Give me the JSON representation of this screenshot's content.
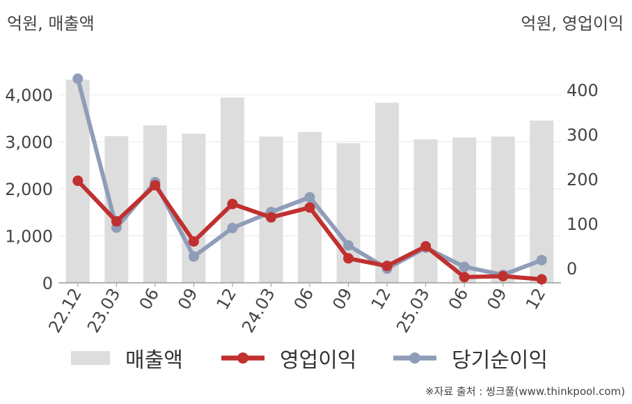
{
  "units": {
    "left": "억원, 매출액",
    "right": "억원, 영업이익"
  },
  "legend": {
    "revenue": "매출액",
    "op_income": "영업이익",
    "net_income": "당기순이익"
  },
  "source": "※자료 출처 : 씽크풀(www.thinkpool.com)",
  "colors": {
    "bar": "#dddddd",
    "op_income": "#c0302f",
    "net_income": "#8f9db8",
    "grid": "#e8e8e8",
    "axis": "#999999"
  },
  "chart_data": {
    "type": "bar",
    "categories": [
      "22.12",
      "23.03",
      "06",
      "09",
      "12",
      "24.03",
      "06",
      "09",
      "12",
      "25.03",
      "06",
      "09",
      "12"
    ],
    "series": [
      {
        "name": "매출액",
        "type": "bar",
        "axis": "left",
        "values": [
          4320,
          3120,
          3350,
          3170,
          3940,
          3110,
          3210,
          2970,
          3830,
          3050,
          3090,
          3110,
          3450
        ]
      },
      {
        "name": "영업이익",
        "type": "line",
        "axis": "right",
        "values": [
          196,
          105,
          186,
          60,
          144,
          114,
          136,
          22,
          5,
          49,
          -20,
          -18,
          -25
        ]
      },
      {
        "name": "당기순이익",
        "type": "line",
        "axis": "right",
        "values": [
          425,
          91,
          193,
          26,
          90,
          126,
          159,
          51,
          -1,
          46,
          3,
          -15,
          18
        ]
      }
    ],
    "y_left": {
      "min": 0,
      "max": 4000,
      "ticks": [
        0,
        1000,
        2000,
        3000,
        4000
      ],
      "tick_labels": [
        "0",
        "1,000",
        "2,000",
        "3,000",
        "4,000"
      ]
    },
    "y_right": {
      "ticks": [
        0,
        100,
        200,
        300,
        400
      ],
      "tick_labels": [
        "0",
        "100",
        "200",
        "300",
        "400"
      ]
    },
    "grid": true,
    "legend_position": "bottom"
  }
}
